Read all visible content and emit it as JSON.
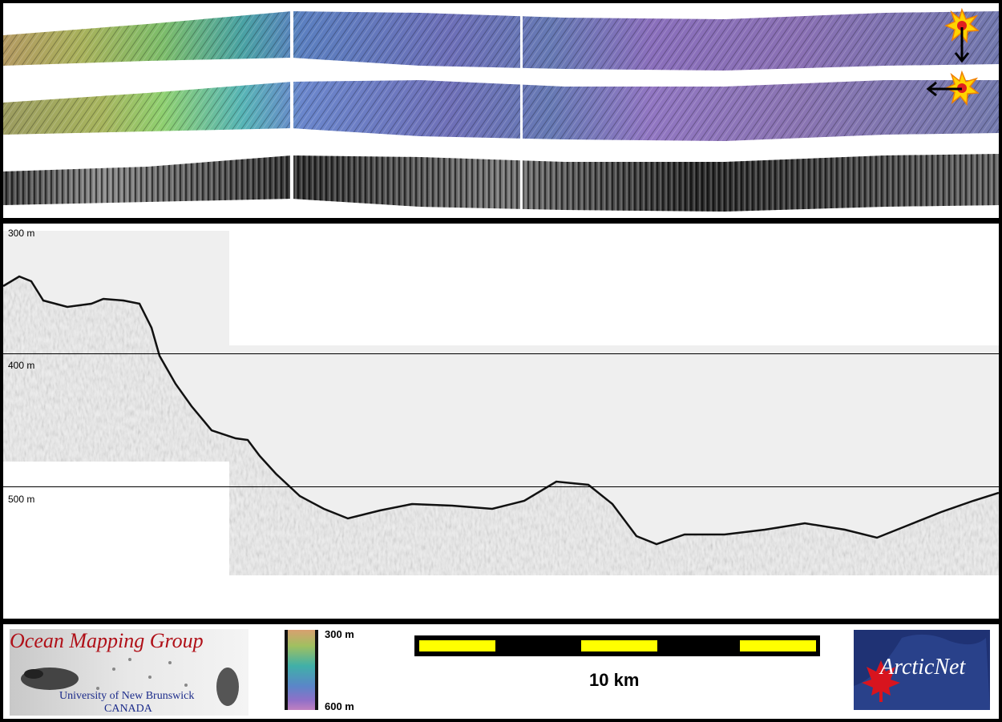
{
  "profile": {
    "depth_labels": [
      "300 m",
      "400 m",
      "500 m"
    ]
  },
  "legend": {
    "colorbar_top_label": "300 m",
    "colorbar_bottom_label": "600 m",
    "colorbar_colors": [
      "#d8b07a",
      "#9cc46a",
      "#3fb6a8",
      "#5a86c8",
      "#7a66c8",
      "#b07cc2"
    ],
    "scale_label": "10 km"
  },
  "logos": {
    "omg_title": "Ocean Mapping Group",
    "omg_subtitle_1": "University of New Brunswick",
    "omg_subtitle_2": "CANADA",
    "arcticnet": "ArcticNet"
  },
  "colors": {
    "frame": "#000000",
    "panel": "#ffffff",
    "scale_segment": "#ffff00",
    "omg_title": "#b01018",
    "omg_subtitle": "#1a2a8a",
    "arcticnet_bg": "#1f3274",
    "maple_leaf": "#d8141e"
  },
  "icons": [
    "sun-illumination-icon",
    "arrow-down-icon",
    "arrow-left-icon",
    "maple-leaf-icon"
  ]
}
